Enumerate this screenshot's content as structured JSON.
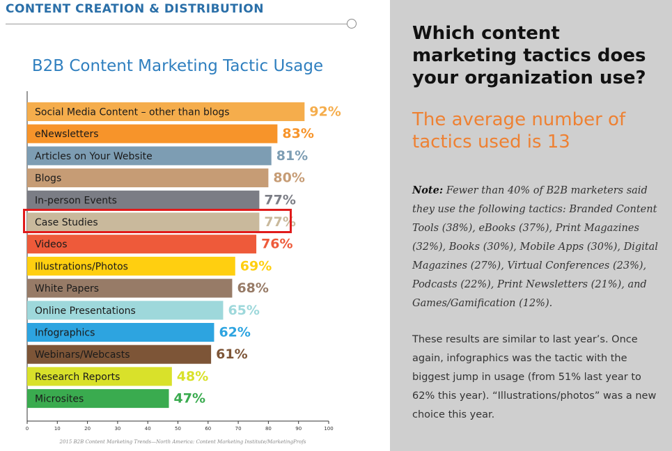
{
  "section_title": "CONTENT CREATION & DISTRIBUTION",
  "chart_data": {
    "type": "bar",
    "orientation": "horizontal",
    "title": "B2B Content Marketing Tactic Usage",
    "categories": [
      "Social Media Content – other than blogs",
      "eNewsletters",
      "Articles on Your Website",
      "Blogs",
      "In-person Events",
      "Case Studies",
      "Videos",
      "Illustrations/Photos",
      "White Papers",
      "Online Presentations",
      "Infographics",
      "Webinars/Webcasts",
      "Research Reports",
      "Microsites"
    ],
    "values": [
      92,
      83,
      81,
      80,
      77,
      77,
      76,
      69,
      68,
      65,
      62,
      61,
      48,
      47
    ],
    "value_labels": [
      "92%",
      "83%",
      "81%",
      "80%",
      "77%",
      "77%",
      "76%",
      "69%",
      "68%",
      "65%",
      "62%",
      "61%",
      "48%",
      "47%"
    ],
    "colors": [
      "#f5ad4c",
      "#f7942a",
      "#7d9db3",
      "#c69c75",
      "#7b7d85",
      "#c9b99c",
      "#ee5a3a",
      "#ffcf10",
      "#977b67",
      "#9ed8db",
      "#2da4e0",
      "#7d5537",
      "#d9e12a",
      "#3aab4f"
    ],
    "xlim": [
      0,
      100
    ],
    "xticks": [
      "0",
      "10",
      "20",
      "30",
      "40",
      "50",
      "60",
      "70",
      "80",
      "90",
      "100"
    ],
    "grid": false,
    "highlighted": "Case Studies"
  },
  "source": "2015 B2B Content Marketing Trends—North America: Content Marketing Institute/MarketingProfs",
  "sidebar": {
    "question": "Which content marketing tactics does your organization use?",
    "average": "The average number of tactics used is 13",
    "note_label": "Note:",
    "note_text": " Fewer than 40% of B2B marketers said they use the following tactics: Branded Content Tools (38%), eBooks (37%), Print Magazines (32%), Books (30%), Mobile Apps (30%), Digital Magazines (27%), Virtual Conferences (23%), Podcasts (22%), Print Newsletters (21%), and Games/Gamification (12%).",
    "body": "These results are similar to last year’s. Once again, infographics was the tactic with the biggest jump in usage (from 51% last year to 62% this year). “Illustrations/photos” was a new choice this year."
  }
}
